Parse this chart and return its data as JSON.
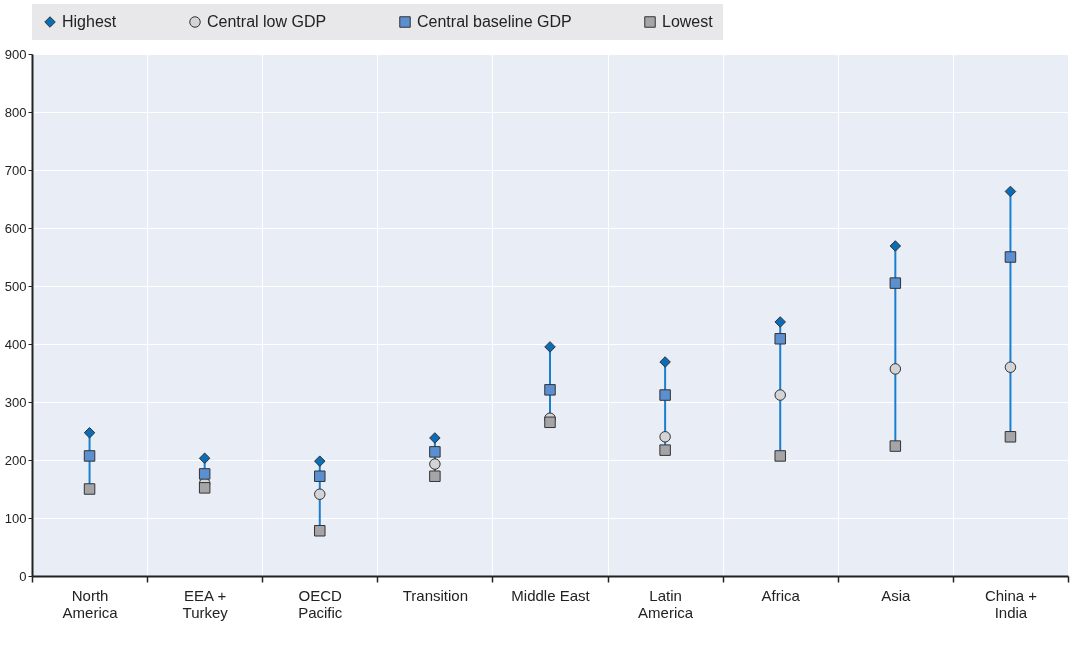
{
  "chart_data": {
    "type": "scatter",
    "categories": [
      "North America",
      "EEA + Turkey",
      "OECD Pacific",
      "Transition",
      "Middle East",
      "Latin America",
      "Africa",
      "Asia",
      "China + India"
    ],
    "series": [
      {
        "name": "Highest",
        "color": "#0b6db7",
        "marker": "diamond",
        "values": [
          247,
          203,
          198,
          238,
          395,
          369,
          438,
          569,
          663
        ]
      },
      {
        "name": "Central low GDP",
        "color": "#d4d4d6",
        "marker": "circle",
        "values": [
          null,
          160,
          141,
          193,
          272,
          240,
          312,
          357,
          360
        ]
      },
      {
        "name": "Central baseline GDP",
        "color": "#5b8fd0",
        "marker": "square",
        "values": [
          207,
          176,
          172,
          214,
          321,
          312,
          409,
          505,
          550
        ]
      },
      {
        "name": "Lowest",
        "color": "#a5a5a8",
        "marker": "square",
        "values": [
          150,
          152,
          78,
          172,
          265,
          217,
          207,
          224,
          240
        ]
      }
    ],
    "ylim": [
      0,
      900
    ],
    "yticks": [
      0,
      100,
      200,
      300,
      400,
      500,
      600,
      700,
      800,
      900
    ],
    "grid": true,
    "legend": "top"
  }
}
